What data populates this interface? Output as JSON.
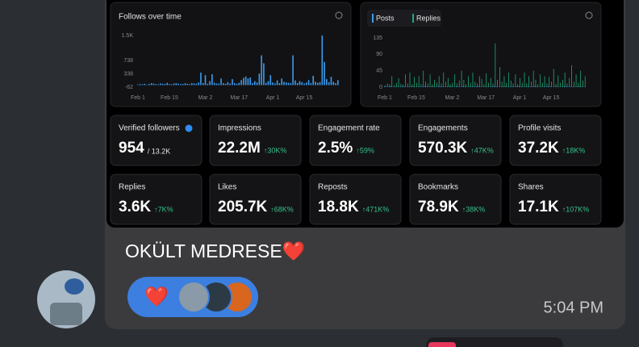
{
  "screen": {
    "image": {
      "charts": [
        {
          "type": "bar",
          "title": "Follows over time",
          "color": "#3b9cf0",
          "xticks": [
            {
              "value": 0,
              "label": "Feb 1"
            },
            {
              "value": 14,
              "label": "Feb 15"
            },
            {
              "value": 30,
              "label": "Mar 2"
            },
            {
              "value": 45,
              "label": "Mar 17"
            },
            {
              "value": 60,
              "label": "Apr 1"
            },
            {
              "value": 74,
              "label": "Apr 15"
            }
          ],
          "xlim": [
            -2,
            90
          ],
          "ylim": [
            -62,
            1500
          ],
          "yticks": [
            {
              "value": 1500,
              "label": "1.5K"
            },
            738,
            338,
            -62
          ],
          "series": [
            {
              "color": "#3b9cf0",
              "values": [
                20,
                30,
                25,
                40,
                15,
                35,
                60,
                45,
                30,
                25,
                50,
                40,
                35,
                70,
                30,
                25,
                45,
                60,
                40,
                30,
                35,
                55,
                40,
                30,
                60,
                50,
                45,
                80,
                380,
                60,
                300,
                40,
                120,
                330,
                70,
                50,
                45,
                200,
                60,
                40,
                90,
                50,
                180,
                60,
                40,
                70,
                150,
                220,
                260,
                200,
                230,
                60,
                120,
                80,
                350,
                900,
                660,
                70,
                120,
                300,
                80,
                50,
                140,
                60,
                200,
                100,
                80,
                70,
                60,
                900,
                140,
                60,
                120,
                90,
                50,
                80,
                150,
                60,
                280,
                100,
                70,
                90,
                1500,
                700,
                180,
                90,
                250,
                100,
                60,
                150
              ]
            }
          ]
        },
        {
          "type": "bar",
          "xticks": [
            {
              "value": 0,
              "label": "Feb 1"
            },
            {
              "value": 14,
              "label": "Feb 15"
            },
            {
              "value": 30,
              "label": "Mar 2"
            },
            {
              "value": 45,
              "label": "Mar 17"
            },
            {
              "value": 60,
              "label": "Apr 1"
            },
            {
              "value": 74,
              "label": "Apr 15"
            }
          ],
          "xlim": [
            -2,
            90
          ],
          "ylim": [
            0,
            135
          ],
          "yticks": [
            135,
            90,
            45,
            0
          ],
          "series": [
            {
              "name": "Posts",
              "color": "#3b9cf0",
              "values": [
                2,
                1,
                2,
                3,
                1,
                2,
                2,
                1,
                3,
                2,
                1,
                2,
                2,
                3,
                1,
                2,
                1,
                2,
                3,
                2,
                1,
                2,
                2,
                1,
                3,
                2,
                2,
                1,
                2,
                3,
                2,
                1,
                2,
                2,
                1,
                3,
                2,
                1,
                2,
                2,
                1,
                2,
                3,
                2,
                1,
                2,
                2,
                1,
                2,
                3,
                2,
                1,
                2,
                2,
                3,
                1,
                2,
                2,
                1,
                2,
                3,
                2,
                1,
                2,
                2,
                1,
                2,
                3,
                2,
                1,
                2,
                2,
                1,
                3,
                2,
                1,
                2,
                2,
                1,
                2,
                3,
                2,
                1,
                2,
                2,
                1,
                2,
                3,
                2,
                1
              ]
            },
            {
              "name": "Replies",
              "color": "#1fa97a",
              "values": [
                5,
                10,
                8,
                30,
                6,
                12,
                25,
                9,
                7,
                35,
                10,
                40,
                8,
                28,
                12,
                30,
                9,
                45,
                15,
                10,
                35,
                8,
                20,
                12,
                30,
                10,
                40,
                15,
                25,
                8,
                12,
                35,
                10,
                18,
                45,
                20,
                8,
                30,
                12,
                40,
                15,
                10,
                30,
                22,
                8,
                38,
                12,
                25,
                10,
                120,
                20,
                55,
                15,
                30,
                12,
                40,
                18,
                10,
                35,
                8,
                25,
                12,
                40,
                10,
                30,
                15,
                45,
                20,
                8,
                35,
                12,
                30,
                10,
                28,
                15,
                50,
                9,
                32,
                12,
                20,
                40,
                10,
                25,
                60,
                15,
                35,
                12,
                45,
                18,
                30
              ]
            }
          ]
        }
      ],
      "stats": [
        {
          "label": "Verified followers",
          "value": "954",
          "total": "/ 13.2K"
        },
        {
          "label": "Impressions",
          "value": "22.2M",
          "change": "↑30K%"
        },
        {
          "label": "Engagement rate",
          "value": "2.5%",
          "change": "↑59%"
        },
        {
          "label": "Engagements",
          "value": "570.3K",
          "change": "↑47K%"
        },
        {
          "label": "Profile visits",
          "value": "37.2K",
          "change": "↑18K%"
        },
        {
          "label": "Replies",
          "value": "3.6K",
          "change": "↑7K%"
        },
        {
          "label": "Likes",
          "value": "205.7K",
          "change": "↑68K%"
        },
        {
          "label": "Reposts",
          "value": "18.8K",
          "change": "↑471K%"
        },
        {
          "label": "Bookmarks",
          "value": "78.9K",
          "change": "↑38K%"
        },
        {
          "label": "Shares",
          "value": "17.1K",
          "change": "↑107K%"
        }
      ]
    },
    "message": {
      "text": "OKÜLT MEDRESE❤️",
      "reaction": "❤️",
      "time": "5:04 PM"
    }
  }
}
